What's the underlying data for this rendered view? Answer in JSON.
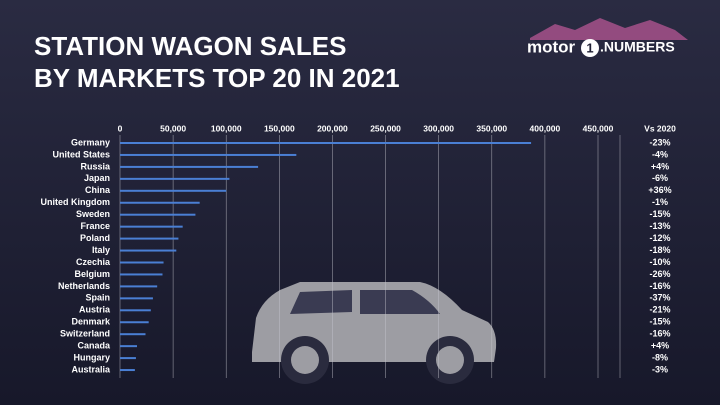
{
  "logo": {
    "brand": "motor",
    "number": "1",
    "suffix": ".NUMBERS"
  },
  "chart_data": {
    "type": "bar",
    "orientation": "horizontal",
    "title": [
      "STATION WAGON SALES",
      "BY MARKETS TOP 20 IN 2021"
    ],
    "categories": [
      "Germany",
      "United States",
      "Russia",
      "Japan",
      "China",
      "United Kingdom",
      "Sweden",
      "France",
      "Poland",
      "Italy",
      "Czechia",
      "Belgium",
      "Netherlands",
      "Spain",
      "Austria",
      "Denmark",
      "Switzerland",
      "Canada",
      "Hungary",
      "Australia"
    ],
    "values": [
      387000,
      166000,
      130000,
      103000,
      100000,
      75000,
      71000,
      59000,
      55000,
      53000,
      41000,
      40000,
      35000,
      31000,
      29000,
      27000,
      24000,
      16000,
      15000,
      14000
    ],
    "color": "#4a7fd4",
    "xlim": [
      0,
      450000
    ],
    "xticks": [
      0,
      {
        "value": 50000,
        "label": "50,000"
      },
      {
        "value": 100000,
        "label": "100,000"
      },
      {
        "value": 150000,
        "label": "150,000"
      },
      {
        "value": 200000,
        "label": "200,000"
      },
      {
        "value": 250000,
        "label": "250,000"
      },
      {
        "value": 300000,
        "label": "300,000"
      },
      {
        "value": 350000,
        "label": "350,000"
      },
      {
        "value": 400000,
        "label": "400,000"
      },
      {
        "value": 450000,
        "label": "450,000"
      }
    ],
    "grid": true,
    "change_header": "Vs 2020",
    "changes": [
      "-23%",
      "-4%",
      "+4%",
      "-6%",
      "+36%",
      "-1%",
      "-15%",
      "-13%",
      "-12%",
      "-18%",
      "-10%",
      "-26%",
      "-16%",
      "-37%",
      "-21%",
      "-15%",
      "-16%",
      "+4%",
      "-8%",
      "-3%"
    ]
  }
}
